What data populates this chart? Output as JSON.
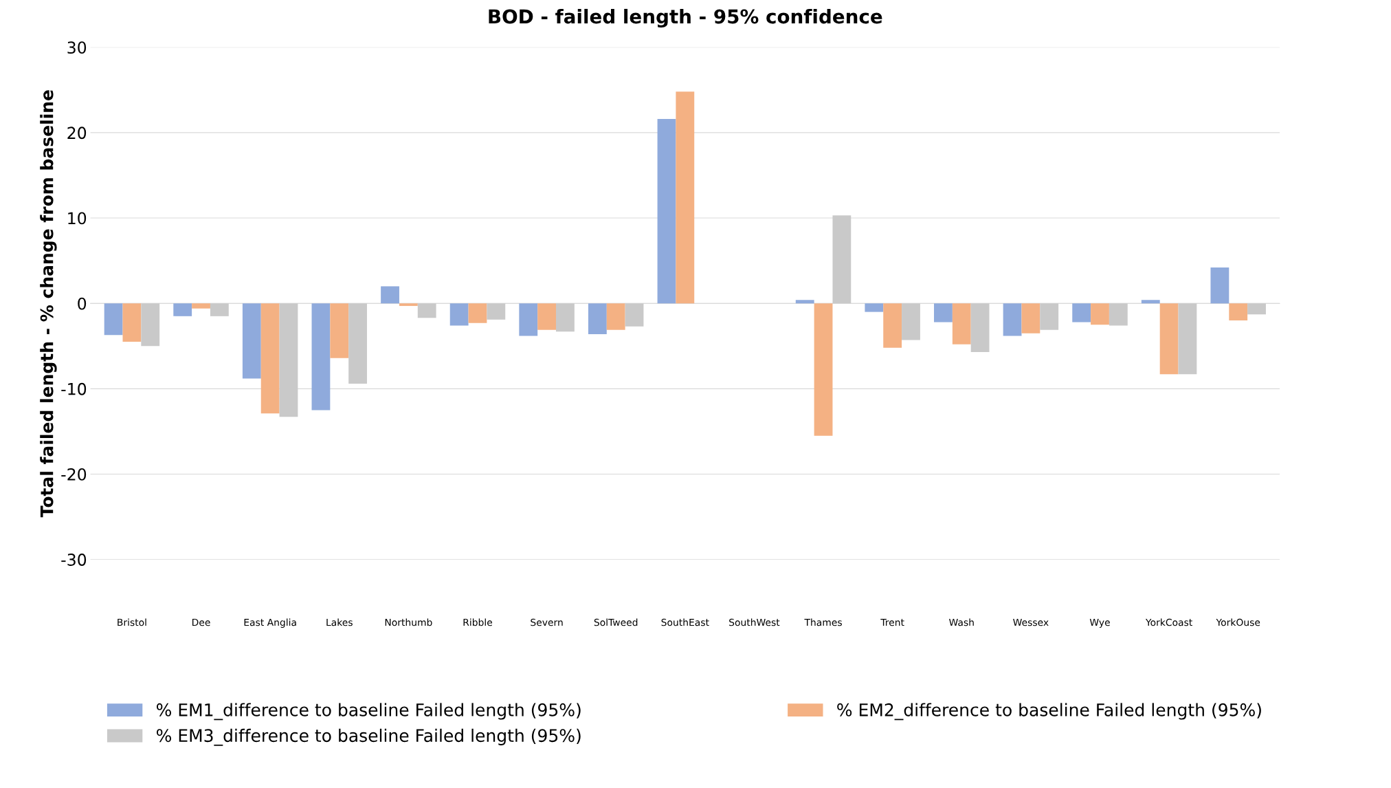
{
  "chart_data": {
    "type": "bar",
    "title": "BOD - failed length - 95% confidence",
    "ylabel": "Total failed length - % change from baseline",
    "categories": [
      "Bristol",
      "Dee",
      "East Anglia",
      "Lakes",
      "Northumb",
      "Ribble",
      "Severn",
      "SolTweed",
      "SouthEast",
      "SouthWest",
      "Thames",
      "Trent",
      "Wash",
      "Wessex",
      "Wye",
      "YorkCoast",
      "YorkOuse"
    ],
    "series": [
      {
        "name": "% EM1_difference to baseline Failed length (95%)",
        "color": "#8faadc",
        "values": [
          -3.7,
          -1.5,
          -8.8,
          -12.5,
          2.0,
          -2.6,
          -3.8,
          -3.6,
          21.6,
          null,
          0.4,
          -1.0,
          -2.2,
          -3.8,
          -2.2,
          0.4,
          4.2
        ]
      },
      {
        "name": "% EM2_difference to baseline Failed length (95%)",
        "color": "#f4b183",
        "values": [
          -4.5,
          -0.6,
          -12.9,
          -6.4,
          -0.3,
          -2.3,
          -3.1,
          -3.1,
          24.8,
          null,
          -15.5,
          -5.2,
          -4.8,
          -3.5,
          -2.5,
          -8.3,
          -2.0
        ]
      },
      {
        "name": "% EM3_difference to baseline Failed length (95%)",
        "color": "#c9c9c9",
        "values": [
          -5.0,
          -1.5,
          -13.3,
          -9.4,
          -1.7,
          -1.9,
          -3.3,
          -2.7,
          null,
          null,
          10.3,
          -4.3,
          -5.7,
          -3.1,
          -2.6,
          -8.3,
          -1.3
        ]
      }
    ],
    "ylim": [
      -30,
      30
    ],
    "yticks": [
      -30,
      -20,
      -10,
      0,
      10,
      20,
      30
    ],
    "grid": "y",
    "legend": "bottom"
  }
}
